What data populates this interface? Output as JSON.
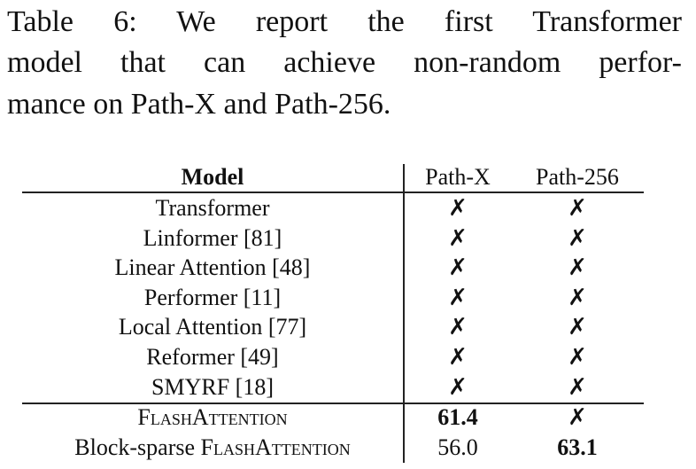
{
  "caption_lines": [
    "Table 6: We report the first Transformer",
    "model that can achieve non-random perfor-",
    "mance on Path-X and Path-256."
  ],
  "table": {
    "header": [
      "Model",
      "Path-X",
      "Path-256"
    ],
    "rows": [
      [
        "Transformer",
        "✗",
        "✗"
      ],
      [
        "Linformer [81]",
        "✗",
        "✗"
      ],
      [
        "Linear Attention [48]",
        "✗",
        "✗"
      ],
      [
        "Performer [11]",
        "✗",
        "✗"
      ],
      [
        "Local Attention [77]",
        "✗",
        "✗"
      ],
      [
        "Reformer [49]",
        "✗",
        "✗"
      ],
      [
        "SMYRF [18]",
        "✗",
        "✗"
      ],
      [
        "FlashAttention",
        "61.4",
        "✗"
      ],
      [
        "Block-sparse FlashAttention",
        "56.0",
        "63.1"
      ]
    ]
  }
}
